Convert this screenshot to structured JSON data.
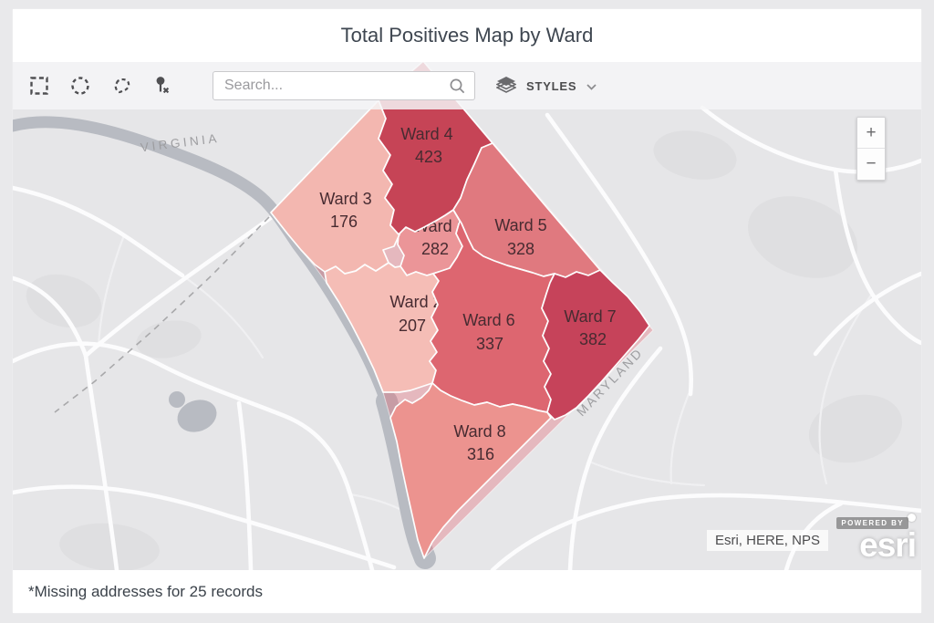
{
  "title": "Total Positives Map by Ward",
  "toolbar": {
    "tools": [
      {
        "name": "rectangle-select"
      },
      {
        "name": "circle-select"
      },
      {
        "name": "lasso-select"
      },
      {
        "name": "clear-selection-pin"
      }
    ],
    "search_placeholder": "Search...",
    "styles_label": "STYLES"
  },
  "map": {
    "virginia_label": "VIRGINIA",
    "maryland_label": "MARYLAND",
    "zoom_in_label": "+",
    "zoom_out_label": "−",
    "attribution": "Esri, HERE, NPS",
    "powered_by_small": "POWERED BY",
    "powered_by_brand": "esri"
  },
  "footer_note": "*Missing addresses for 25 records",
  "chart_data": {
    "type": "choropleth",
    "title": "Total Positives Map by Ward",
    "measure": "Total Positives",
    "regions": [
      {
        "name": "Ward 1",
        "value": 282,
        "color": "#eb9598"
      },
      {
        "name": "Ward 2",
        "value": 207,
        "color": "#f5bdb6"
      },
      {
        "name": "Ward 3",
        "value": 176,
        "color": "#f3b7b0"
      },
      {
        "name": "Ward 4",
        "value": 423,
        "color": "#c6germ4456"
      },
      {
        "name": "Ward 5",
        "value": 328,
        "color": "#e0797f"
      },
      {
        "name": "Ward 6",
        "value": 337,
        "color": "#dd6670"
      },
      {
        "name": "Ward 7",
        "value": 382,
        "color": "#c6435a"
      },
      {
        "name": "Ward 8",
        "value": 316,
        "color": "#ec938f"
      }
    ],
    "basemap_labels": [
      "VIRGINIA",
      "MARYLAND"
    ],
    "basemap_attribution": "Esri, HERE, NPS",
    "note": "*Missing addresses for 25 records",
    "legend_position": "none"
  }
}
